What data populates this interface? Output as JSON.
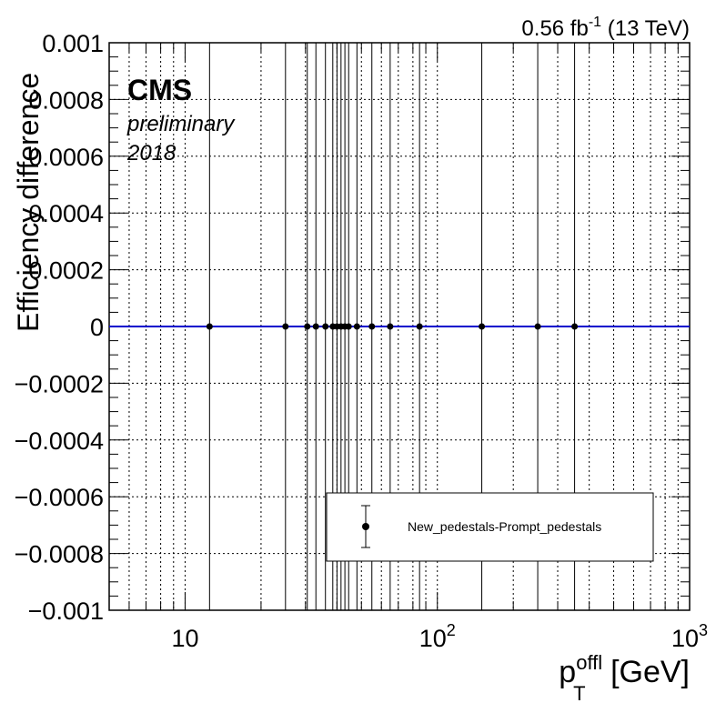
{
  "header": {
    "lumi_value": "0.56 fb",
    "lumi_exp": "-1",
    "lumi_energy": " (13 TeV)"
  },
  "cms_label": {
    "title": "CMS",
    "line1": "preliminary",
    "line2": "2018"
  },
  "axis_labels": {
    "y": "Efficiency difference",
    "x_main": "p",
    "x_sup": "offl",
    "x_sub": "T",
    "x_unit": " [GeV]"
  },
  "legend": {
    "entry": "New_pedestals-Prompt_pedestals"
  },
  "chart_data": {
    "type": "scatter",
    "x_scale": "log",
    "xlim": [
      5,
      1000
    ],
    "ylim": [
      -0.001,
      0.001
    ],
    "grid": true,
    "legend_position": "bottom-right",
    "x_ticks": [
      {
        "value": 10,
        "label": "10",
        "sup": ""
      },
      {
        "value": 100,
        "label": "10",
        "sup": "2"
      },
      {
        "value": 1000,
        "label": "10",
        "sup": "3"
      }
    ],
    "y_ticks": [
      {
        "value": 0.001,
        "label": "0.001"
      },
      {
        "value": 0.0008,
        "label": "0.0008"
      },
      {
        "value": 0.0006,
        "label": "0.0006"
      },
      {
        "value": 0.0004,
        "label": "0.0004"
      },
      {
        "value": 0.0002,
        "label": "0.0002"
      },
      {
        "value": 0,
        "label": "0"
      },
      {
        "value": -0.0002,
        "label": "−0.0002"
      },
      {
        "value": -0.0004,
        "label": "−0.0004"
      },
      {
        "value": -0.0006,
        "label": "−0.0006"
      },
      {
        "value": -0.0008,
        "label": "−0.0008"
      },
      {
        "value": -0.001,
        "label": "−0.001"
      }
    ],
    "series": [
      {
        "name": "New_pedestals-Prompt_pedestals",
        "color": "#000000",
        "fit_line_color": "#0000cc",
        "x": [
          12.5,
          25,
          30.5,
          33,
          36,
          38.5,
          40,
          41.5,
          43,
          44.5,
          48,
          55,
          65,
          85,
          150,
          250,
          350
        ],
        "y": [
          0,
          0,
          0,
          0,
          0,
          0,
          0,
          0,
          0,
          0,
          0,
          0,
          0,
          0,
          0,
          0,
          0
        ]
      }
    ]
  }
}
